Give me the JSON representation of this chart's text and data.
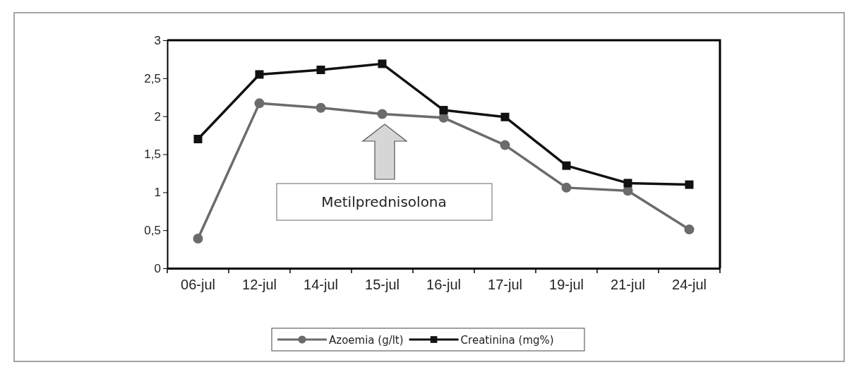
{
  "chart_data": {
    "type": "line",
    "categories": [
      "06-jul",
      "12-jul",
      "14-jul",
      "15-jul",
      "16-jul",
      "17-jul",
      "19-jul",
      "21-jul",
      "24-jul"
    ],
    "series": [
      {
        "name": "Azoemia (g/lt)",
        "color": "#6b6b6b",
        "marker": "circle",
        "values": [
          0.39,
          2.17,
          2.11,
          2.03,
          1.98,
          1.62,
          1.06,
          1.02,
          0.51
        ]
      },
      {
        "name": "Creatinina (mg%)",
        "color": "#111111",
        "marker": "square",
        "values": [
          1.7,
          2.55,
          2.61,
          2.69,
          2.08,
          1.99,
          1.35,
          1.12,
          1.1
        ]
      }
    ],
    "ylim": [
      0,
      3
    ],
    "yticks": [
      0,
      {
        "value": 0.5,
        "label": "0,5"
      },
      1,
      {
        "value": 1.5,
        "label": "1,5"
      },
      2,
      {
        "value": 2.5,
        "label": "2,5"
      },
      3
    ],
    "annotations": [
      "Metilprednisolona"
    ],
    "grid": false,
    "legend": "bottom"
  }
}
